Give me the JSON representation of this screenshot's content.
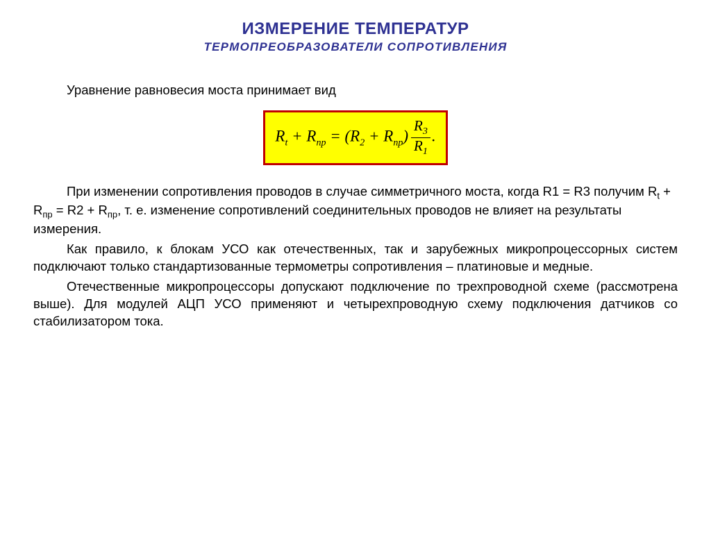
{
  "title": {
    "main": "ИЗМЕРЕНИЕ ТЕМПЕРАТУР",
    "sub": "ТЕРМОПРЕОБРАЗОВАТЕЛИ  СОПРОТИВЛЕНИЯ"
  },
  "colors": {
    "title_color": "#2e3192",
    "body_color": "#000000",
    "formula_bg": "#ffff00",
    "formula_border": "#c00000",
    "page_bg": "#ffffff"
  },
  "typography": {
    "title_main_fontsize": 24,
    "title_sub_fontsize": 17,
    "body_fontsize": 18.5,
    "formula_fontsize": 23,
    "body_font": "Arial",
    "formula_font": "Times New Roman"
  },
  "formula": {
    "lhs_r_t": "R",
    "lhs_r_t_sub": "t",
    "plus": " + ",
    "r_np": "R",
    "r_np_sub": "np",
    "eq": " = (",
    "r2": "R",
    "r2_sub": "2",
    "close_plus": " + ",
    "frac_num_r": "R",
    "frac_num_sub": "3",
    "frac_den_r": "R",
    "frac_den_sub": "1",
    "close": ")",
    "period": "."
  },
  "paragraphs": {
    "intro": "Уравнение равновесия моста принимает вид",
    "p1_a": "При изменении сопротивления проводов в случае симметричного моста, когда R1 = R3 получим R",
    "p1_sub_t": "t",
    "p1_b": " + R",
    "p1_sub_pr1": "пр",
    "p1_c": " = R2 + R",
    "p1_sub_pr2": "пр",
    "p1_d": ", т. е. изменение сопротивлений соединительных проводов не влияет на результаты измерения.",
    "p2": "Как правило, к блокам УСО как отечественных, так и зарубежных микропроцессорных систем подключают только стандартизованные термометры сопротивления – платиновые и медные.",
    "p3": "Отечественные микропроцессоры допускают подключение по трехпроводной схеме (рассмотрена выше). Для модулей АЦП УСО применяют и четырехпроводную схему подключения датчиков со стабилизатором тока."
  }
}
